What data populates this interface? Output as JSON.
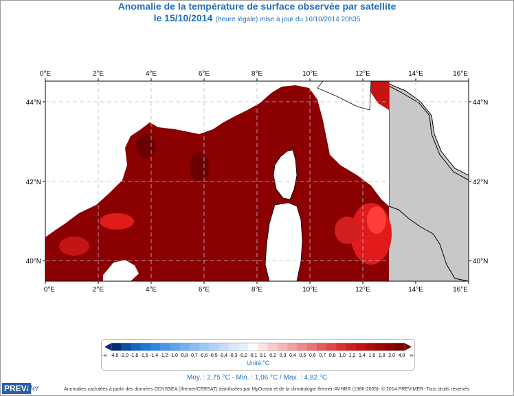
{
  "title": {
    "line1": "Anomalie de la température de surface observée par satellite",
    "date": "le 15/10/2014",
    "updated": "(heure légale) mise à jour du 16/10/2014 20h35"
  },
  "map": {
    "lon_ticks": [
      "0°E",
      "2°E",
      "4°E",
      "6°E",
      "8°E",
      "10°E",
      "12°E",
      "14°E",
      "16°E"
    ],
    "lat_ticks": [
      "44°N",
      "42°N",
      "40°N"
    ],
    "lon_range": [
      0,
      16
    ],
    "lat_range": [
      39.5,
      44.5
    ],
    "colors": {
      "sea_anomaly": "#8b0000",
      "warm_patch": "#e11b1b",
      "hot_patch": "#ff3c3c",
      "land_masked": "#ffffff",
      "land_outside": "#c8c8c8",
      "grid": "#b8bfd8"
    }
  },
  "legend": {
    "labels": [
      "-∞",
      "-4,0",
      "-2,0",
      "-1,8",
      "-1,6",
      "-1,4",
      "-1,2",
      "-1,0",
      "-0,8",
      "-0,7",
      "-0,6",
      "-0,5",
      "-0,4",
      "-0,3",
      "-0,2",
      "-0,1",
      "0,1",
      "0,2",
      "0,3",
      "0,4",
      "0,5",
      "0,6",
      "0,7",
      "0,8",
      "1,0",
      "1,2",
      "1,4",
      "1,6",
      "1,8",
      "2,0",
      "4,0",
      "∞"
    ],
    "colors": [
      "#002e72",
      "#0a4fa3",
      "#1566c2",
      "#1e78d8",
      "#2e86e3",
      "#4596e8",
      "#5ca4ec",
      "#72b1ef",
      "#88bdf2",
      "#9cc8f4",
      "#b0d3f6",
      "#c3ddf8",
      "#d6e8fa",
      "#e6f0fb",
      "#ffffff",
      "#fbe3e3",
      "#f8cccc",
      "#f5b6b6",
      "#f2a0a0",
      "#ee8a8a",
      "#ea7373",
      "#e55c5c",
      "#e04646",
      "#db3030",
      "#d21e1e",
      "#c41414",
      "#b30c0c",
      "#a00606",
      "#8d0303",
      "#7a0000"
    ],
    "unit": "Unité:°C"
  },
  "stats": "Moy. : 2,75 °C    -    Min. : 1,06 °C / Max. : 4,82 °C",
  "credits": "Anomalies caclulées à partir des données ODYSSEA (Ifremer/CERSAT) distribuées par MyOcean et de la climatologie Ifremer-AVHRR (1986-2009)- © 2014 PREVIMER -Tous droits réservés",
  "logo": {
    "part1": "PREVI",
    "part2": "Mer"
  }
}
